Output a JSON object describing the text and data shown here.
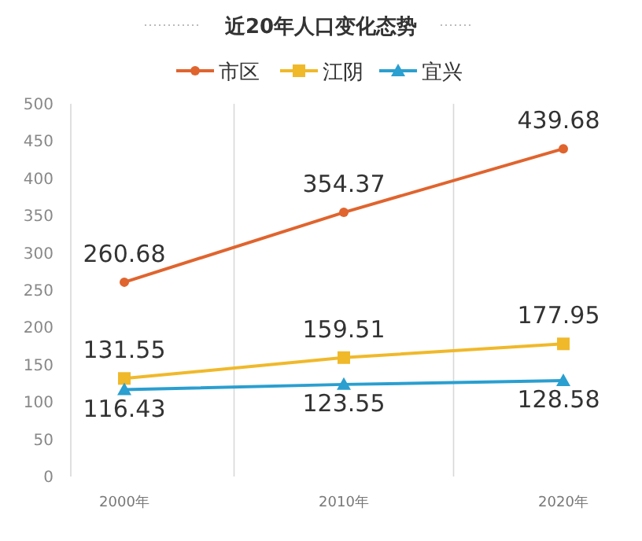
{
  "chart_data": {
    "type": "line",
    "title": "近20年人口变化态势",
    "categories": [
      "2000年",
      "2010年",
      "2020年"
    ],
    "series": [
      {
        "name": "市区",
        "color": "#e0642e",
        "marker": "circle",
        "values": [
          260.68,
          354.37,
          439.68
        ]
      },
      {
        "name": "江阴",
        "color": "#f0b92a",
        "marker": "square",
        "values": [
          131.55,
          159.51,
          177.95
        ]
      },
      {
        "name": "宜兴",
        "color": "#2a9fd0",
        "marker": "triangle",
        "values": [
          116.43,
          123.55,
          128.58
        ]
      }
    ],
    "ylim": [
      0,
      500
    ],
    "yticks": [
      0,
      50,
      100,
      150,
      200,
      250,
      300,
      350,
      400,
      450,
      500
    ],
    "grid": "x",
    "legend": "top",
    "data_labels": true
  }
}
